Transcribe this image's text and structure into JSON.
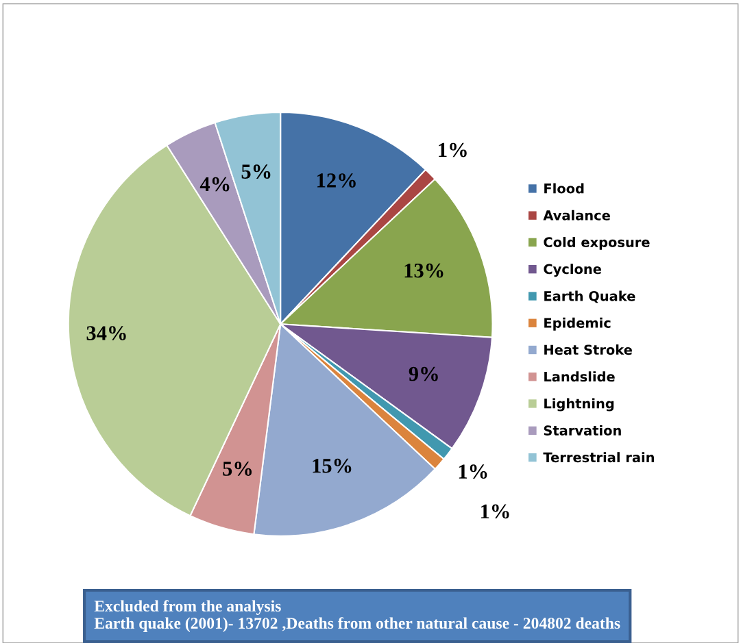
{
  "chart_data": {
    "type": "pie",
    "categories": [
      "Flood",
      "Avalance",
      "Cold exposure",
      "Cyclone",
      "Earth Quake",
      "Epidemic",
      "Heat Stroke",
      "Landslide",
      "Lightning",
      "Starvation",
      "Terrestrial rain"
    ],
    "values": [
      12,
      1,
      13,
      9,
      1,
      1,
      15,
      5,
      34,
      4,
      5
    ],
    "colors": [
      "#4572a7",
      "#aa4643",
      "#89a54e",
      "#71588f",
      "#4198af",
      "#db843d",
      "#93a9cf",
      "#d19392",
      "#b9cd96",
      "#a99bbd",
      "#92c3d5"
    ],
    "value_labels": [
      "12%",
      "1%",
      "13%",
      "9%",
      "1%",
      "1%",
      "15%",
      "5%",
      "34%",
      "4%",
      "5%"
    ],
    "legend": "right",
    "annotations": [
      "Excluded from the analysis\nEarth quake (2001)- 13702 ,Deaths from other natural cause - 204802 deaths"
    ]
  }
}
